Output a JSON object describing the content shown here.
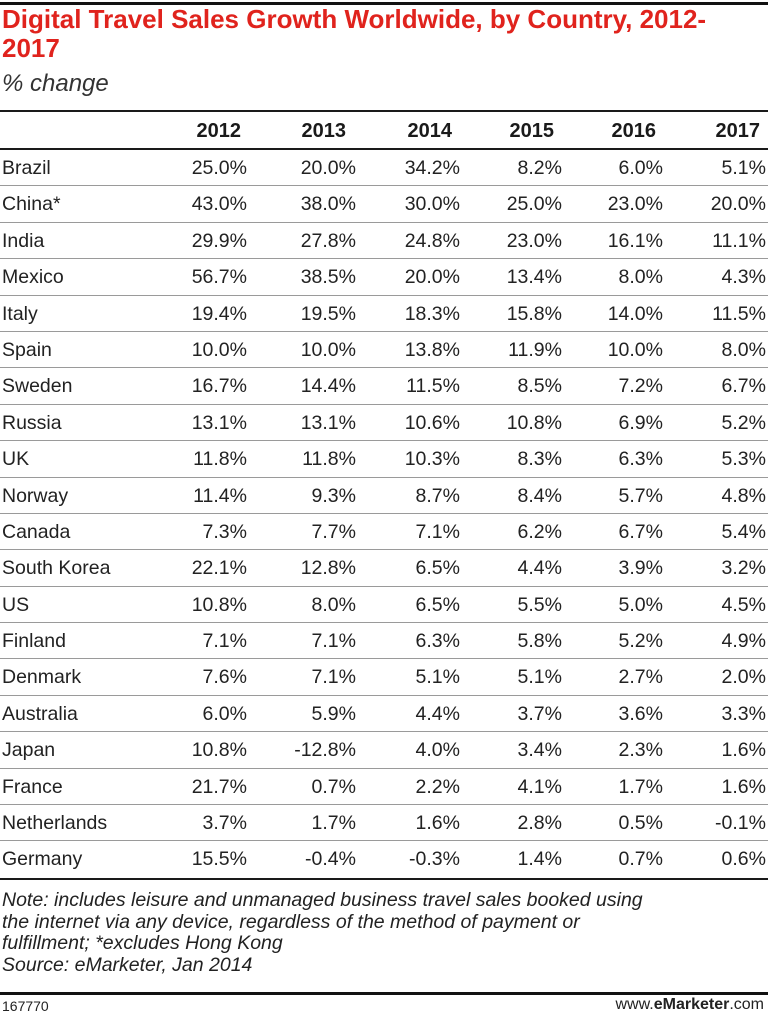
{
  "title": "Digital Travel Sales Growth Worldwide, by Country, 2012-2017",
  "subtitle": "% change",
  "note_lines": [
    "Note: includes leisure and unmanaged business travel sales booked using",
    "the internet via any device, regardless of the method of payment or",
    "fulfillment; *excludes Hong Kong",
    "Source: eMarketer, Jan 2014"
  ],
  "footer": {
    "id": "167770",
    "brand_prefix": "www.",
    "brand_bold": "eMarketer",
    "brand_suffix": ".com"
  },
  "chart_data": {
    "type": "table",
    "title": "Digital Travel Sales Growth Worldwide, by Country, 2012-2017",
    "subtitle": "% change",
    "columns": [
      "2012",
      "2013",
      "2014",
      "2015",
      "2016",
      "2017"
    ],
    "rows": [
      {
        "label": "Brazil",
        "values": [
          "25.0%",
          "20.0%",
          "34.2%",
          "8.2%",
          "6.0%",
          "5.1%"
        ]
      },
      {
        "label": "China*",
        "values": [
          "43.0%",
          "38.0%",
          "30.0%",
          "25.0%",
          "23.0%",
          "20.0%"
        ]
      },
      {
        "label": "India",
        "values": [
          "29.9%",
          "27.8%",
          "24.8%",
          "23.0%",
          "16.1%",
          "11.1%"
        ]
      },
      {
        "label": "Mexico",
        "values": [
          "56.7%",
          "38.5%",
          "20.0%",
          "13.4%",
          "8.0%",
          "4.3%"
        ]
      },
      {
        "label": "Italy",
        "values": [
          "19.4%",
          "19.5%",
          "18.3%",
          "15.8%",
          "14.0%",
          "11.5%"
        ]
      },
      {
        "label": "Spain",
        "values": [
          "10.0%",
          "10.0%",
          "13.8%",
          "11.9%",
          "10.0%",
          "8.0%"
        ]
      },
      {
        "label": "Sweden",
        "values": [
          "16.7%",
          "14.4%",
          "11.5%",
          "8.5%",
          "7.2%",
          "6.7%"
        ]
      },
      {
        "label": "Russia",
        "values": [
          "13.1%",
          "13.1%",
          "10.6%",
          "10.8%",
          "6.9%",
          "5.2%"
        ]
      },
      {
        "label": "UK",
        "values": [
          "11.8%",
          "11.8%",
          "10.3%",
          "8.3%",
          "6.3%",
          "5.3%"
        ]
      },
      {
        "label": "Norway",
        "values": [
          "11.4%",
          "9.3%",
          "8.7%",
          "8.4%",
          "5.7%",
          "4.8%"
        ]
      },
      {
        "label": "Canada",
        "values": [
          "7.3%",
          "7.7%",
          "7.1%",
          "6.2%",
          "6.7%",
          "5.4%"
        ]
      },
      {
        "label": "South Korea",
        "values": [
          "22.1%",
          "12.8%",
          "6.5%",
          "4.4%",
          "3.9%",
          "3.2%"
        ]
      },
      {
        "label": "US",
        "values": [
          "10.8%",
          "8.0%",
          "6.5%",
          "5.5%",
          "5.0%",
          "4.5%"
        ]
      },
      {
        "label": "Finland",
        "values": [
          "7.1%",
          "7.1%",
          "6.3%",
          "5.8%",
          "5.2%",
          "4.9%"
        ]
      },
      {
        "label": "Denmark",
        "values": [
          "7.6%",
          "7.1%",
          "5.1%",
          "5.1%",
          "2.7%",
          "2.0%"
        ]
      },
      {
        "label": "Australia",
        "values": [
          "6.0%",
          "5.9%",
          "4.4%",
          "3.7%",
          "3.6%",
          "3.3%"
        ]
      },
      {
        "label": "Japan",
        "values": [
          "10.8%",
          "-12.8%",
          "4.0%",
          "3.4%",
          "2.3%",
          "1.6%"
        ]
      },
      {
        "label": "France",
        "values": [
          "21.7%",
          "0.7%",
          "2.2%",
          "4.1%",
          "1.7%",
          "1.6%"
        ]
      },
      {
        "label": "Netherlands",
        "values": [
          "3.7%",
          "1.7%",
          "1.6%",
          "2.8%",
          "0.5%",
          "-0.1%"
        ]
      },
      {
        "label": "Germany",
        "values": [
          "15.5%",
          "-0.4%",
          "-0.3%",
          "1.4%",
          "0.7%",
          "0.6%"
        ]
      }
    ]
  }
}
